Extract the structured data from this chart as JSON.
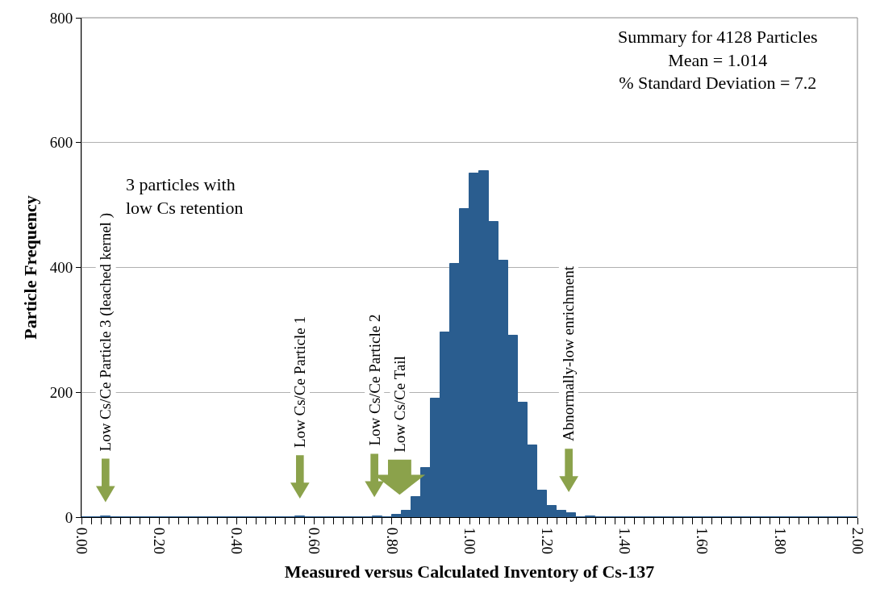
{
  "chart_data": {
    "type": "histogram",
    "xlabel": "Measured versus Calculated Inventory of Cs-137",
    "ylabel": "Particle Frequency",
    "bins": [
      0,
      0.025,
      0.05,
      0.075,
      0.1,
      0.125,
      0.15,
      0.175,
      0.2,
      0.225,
      0.25,
      0.275,
      0.3,
      0.325,
      0.35,
      0.375,
      0.4,
      0.425,
      0.45,
      0.475,
      0.5,
      0.525,
      0.55,
      0.575,
      0.6,
      0.625,
      0.65,
      0.675,
      0.7,
      0.725,
      0.75,
      0.775,
      0.8,
      0.825,
      0.85,
      0.875,
      0.9,
      0.925,
      0.95,
      0.975,
      1,
      1.025,
      1.05,
      1.075,
      1.1,
      1.125,
      1.15,
      1.175,
      1.2,
      1.225,
      1.25,
      1.275,
      1.3,
      1.325,
      1.35,
      1.375,
      1.4,
      1.425,
      1.45,
      1.475,
      1.5,
      1.525,
      1.55,
      1.575,
      1.6,
      1.625,
      1.65,
      1.675,
      1.7,
      1.725,
      1.75,
      1.775,
      1.8,
      1.825,
      1.85,
      1.875,
      1.9,
      1.925,
      1.95,
      1.975,
      2
    ],
    "values": [
      0,
      0,
      1,
      0,
      0,
      0,
      0,
      0,
      0,
      0,
      0,
      0,
      0,
      0,
      0,
      0,
      0,
      0,
      0,
      0,
      0,
      0,
      1,
      0,
      0,
      0,
      0,
      0,
      0,
      0,
      1,
      0,
      4,
      10,
      32,
      79,
      190,
      296,
      406,
      494,
      550,
      555,
      473,
      411,
      291,
      183,
      115,
      43,
      18,
      10,
      6,
      0,
      1,
      0,
      0,
      0,
      0,
      0,
      0,
      0,
      0,
      0,
      0,
      0,
      0,
      0,
      0,
      0,
      0,
      0,
      0,
      0,
      0,
      0,
      0,
      0,
      0,
      0,
      0,
      0
    ],
    "color": "#2a5d8f",
    "xlim": [
      0,
      2
    ],
    "xticks": [
      {
        "value": 0,
        "label": "0.00"
      },
      {
        "value": 0.025,
        "label": null
      },
      {
        "value": 0.05,
        "label": null
      },
      {
        "value": 0.075,
        "label": null
      },
      {
        "value": 0.1,
        "label": null
      },
      {
        "value": 0.125,
        "label": null
      },
      {
        "value": 0.15,
        "label": null
      },
      {
        "value": 0.175,
        "label": null
      },
      {
        "value": 0.2,
        "label": "0.20"
      },
      {
        "value": 0.225,
        "label": null
      },
      {
        "value": 0.25,
        "label": null
      },
      {
        "value": 0.275,
        "label": null
      },
      {
        "value": 0.3,
        "label": null
      },
      {
        "value": 0.325,
        "label": null
      },
      {
        "value": 0.35,
        "label": null
      },
      {
        "value": 0.375,
        "label": null
      },
      {
        "value": 0.4,
        "label": "0.40"
      },
      {
        "value": 0.425,
        "label": null
      },
      {
        "value": 0.45,
        "label": null
      },
      {
        "value": 0.475,
        "label": null
      },
      {
        "value": 0.5,
        "label": null
      },
      {
        "value": 0.525,
        "label": null
      },
      {
        "value": 0.55,
        "label": null
      },
      {
        "value": 0.575,
        "label": null
      },
      {
        "value": 0.6,
        "label": "0.60"
      },
      {
        "value": 0.625,
        "label": null
      },
      {
        "value": 0.65,
        "label": null
      },
      {
        "value": 0.675,
        "label": null
      },
      {
        "value": 0.7,
        "label": null
      },
      {
        "value": 0.725,
        "label": null
      },
      {
        "value": 0.75,
        "label": null
      },
      {
        "value": 0.775,
        "label": null
      },
      {
        "value": 0.8,
        "label": "0.80"
      },
      {
        "value": 0.825,
        "label": null
      },
      {
        "value": 0.85,
        "label": null
      },
      {
        "value": 0.875,
        "label": null
      },
      {
        "value": 0.9,
        "label": null
      },
      {
        "value": 0.925,
        "label": null
      },
      {
        "value": 0.95,
        "label": null
      },
      {
        "value": 0.975,
        "label": null
      },
      {
        "value": 1,
        "label": "1.00"
      },
      {
        "value": 1.025,
        "label": null
      },
      {
        "value": 1.05,
        "label": null
      },
      {
        "value": 1.075,
        "label": null
      },
      {
        "value": 1.1,
        "label": null
      },
      {
        "value": 1.125,
        "label": null
      },
      {
        "value": 1.15,
        "label": null
      },
      {
        "value": 1.175,
        "label": null
      },
      {
        "value": 1.2,
        "label": "1.20"
      },
      {
        "value": 1.225,
        "label": null
      },
      {
        "value": 1.25,
        "label": null
      },
      {
        "value": 1.275,
        "label": null
      },
      {
        "value": 1.3,
        "label": null
      },
      {
        "value": 1.325,
        "label": null
      },
      {
        "value": 1.35,
        "label": null
      },
      {
        "value": 1.375,
        "label": null
      },
      {
        "value": 1.4,
        "label": "1.40"
      },
      {
        "value": 1.425,
        "label": null
      },
      {
        "value": 1.45,
        "label": null
      },
      {
        "value": 1.475,
        "label": null
      },
      {
        "value": 1.5,
        "label": null
      },
      {
        "value": 1.525,
        "label": null
      },
      {
        "value": 1.55,
        "label": null
      },
      {
        "value": 1.575,
        "label": null
      },
      {
        "value": 1.6,
        "label": "1.60"
      },
      {
        "value": 1.625,
        "label": null
      },
      {
        "value": 1.65,
        "label": null
      },
      {
        "value": 1.675,
        "label": null
      },
      {
        "value": 1.7,
        "label": null
      },
      {
        "value": 1.725,
        "label": null
      },
      {
        "value": 1.75,
        "label": null
      },
      {
        "value": 1.775,
        "label": null
      },
      {
        "value": 1.8,
        "label": "1.80"
      },
      {
        "value": 1.825,
        "label": null
      },
      {
        "value": 1.85,
        "label": null
      },
      {
        "value": 1.875,
        "label": null
      },
      {
        "value": 1.9,
        "label": null
      },
      {
        "value": 1.925,
        "label": null
      },
      {
        "value": 1.95,
        "label": null
      },
      {
        "value": 1.975,
        "label": null
      },
      {
        "value": 2,
        "label": "2.00"
      }
    ],
    "ylim": [
      0,
      800
    ],
    "yticks": [
      0,
      200,
      400,
      600,
      800
    ],
    "grid": "y",
    "annotations": [
      "Summary for 4128 Particles\nMean = 1.014\n% Standard Deviation = 7.2",
      "3 particles with\nlow Cs retention",
      "Low Cs/Ce Particle 3 (leached kernel )",
      "Low Cs/Ce Particle 1",
      "Low Cs/Ce Particle 2",
      "Low Cs/Ce Tail",
      "Abnormally-low enrichment"
    ]
  }
}
